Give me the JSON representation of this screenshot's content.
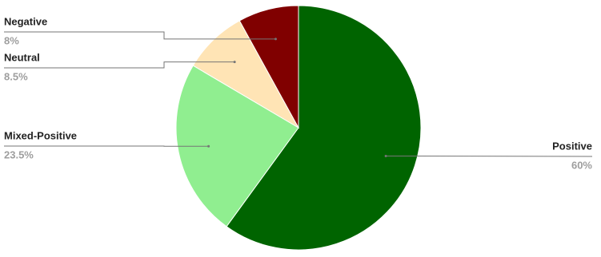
{
  "chart_data": {
    "type": "pie",
    "categories": [
      "Positive",
      "Mixed-Positive",
      "Neutral",
      "Negative"
    ],
    "values": [
      60,
      23.5,
      8.5,
      8
    ],
    "value_labels": [
      "60%",
      "23.5%",
      "8.5%",
      "8%"
    ],
    "colors": [
      "#006400",
      "#90ee90",
      "#ffe4b5",
      "#800000"
    ]
  }
}
